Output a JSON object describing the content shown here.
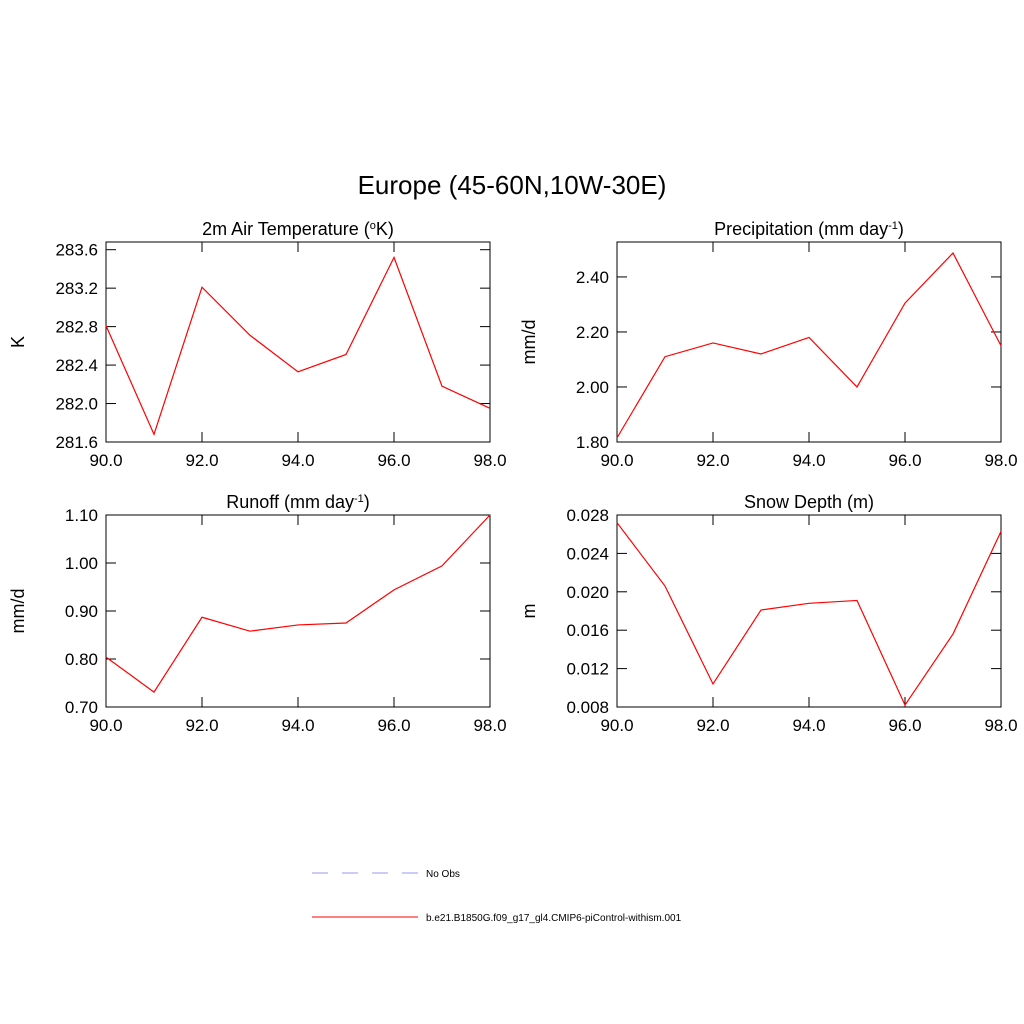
{
  "title": "Europe (45-60N,10W-30E)",
  "legend": [
    {
      "name": "No Obs",
      "color": "#9999ee",
      "dashed": true
    },
    {
      "name": "b.e21.B1850G.f09_g17_gl4.CMIP6-piControl-withism.001",
      "color": "#ff0000",
      "dashed": false
    }
  ],
  "chart_data": [
    {
      "type": "line",
      "title": [
        {
          "text": "2m Air Temperature ("
        },
        {
          "text": "o",
          "sup": true
        },
        {
          "text": "K)"
        }
      ],
      "y_label": "K",
      "color": "#ff0000",
      "x": [
        90,
        91,
        92,
        93,
        94,
        95,
        96,
        97,
        98
      ],
      "values": [
        282.81,
        281.68,
        283.21,
        282.71,
        282.33,
        282.51,
        283.52,
        282.18,
        281.95
      ],
      "xlim": [
        90,
        98
      ],
      "xticks": [
        {
          "value": 90,
          "label": "90.0"
        },
        {
          "value": 92,
          "label": "92.0"
        },
        {
          "value": 94,
          "label": "94.0"
        },
        {
          "value": 96,
          "label": "96.0"
        },
        {
          "value": 98,
          "label": "98.0"
        }
      ],
      "ylim": [
        281.6,
        283.68
      ],
      "yticks": [
        281.6,
        {
          "value": 282,
          "label": "282.0"
        },
        282.4,
        282.8,
        283.2,
        283.6
      ]
    },
    {
      "type": "line",
      "title": [
        {
          "text": "Precipitation (mm day"
        },
        {
          "text": "-1",
          "sup": true
        },
        {
          "text": ")"
        }
      ],
      "y_label": "mm/d",
      "color": "#ff0000",
      "x": [
        90,
        91,
        92,
        93,
        94,
        95,
        96,
        97,
        98
      ],
      "values": [
        1.815,
        2.11,
        2.16,
        2.12,
        2.18,
        2.0,
        2.305,
        2.487,
        2.15
      ],
      "xlim": [
        90,
        98
      ],
      "xticks": [
        {
          "value": 90,
          "label": "90.0"
        },
        {
          "value": 92,
          "label": "92.0"
        },
        {
          "value": 94,
          "label": "94.0"
        },
        {
          "value": 96,
          "label": "96.0"
        },
        {
          "value": 98,
          "label": "98.0"
        }
      ],
      "ylim": [
        1.8,
        2.527
      ],
      "yticks": [
        {
          "value": 1.8,
          "label": "1.80"
        },
        {
          "value": 2,
          "label": "2.00"
        },
        {
          "value": 2.2,
          "label": "2.20"
        },
        {
          "value": 2.4,
          "label": "2.40"
        }
      ]
    },
    {
      "type": "line",
      "title": [
        {
          "text": "Runoff (mm day"
        },
        {
          "text": "-1",
          "sup": true
        },
        {
          "text": ")"
        }
      ],
      "y_label": "mm/d",
      "color": "#ff0000",
      "x": [
        90,
        91,
        92,
        93,
        94,
        95,
        96,
        97,
        98
      ],
      "values": [
        0.804,
        0.731,
        0.887,
        0.858,
        0.871,
        0.875,
        0.944,
        0.994,
        1.1
      ],
      "xlim": [
        90,
        98
      ],
      "xticks": [
        {
          "value": 90,
          "label": "90.0"
        },
        {
          "value": 92,
          "label": "92.0"
        },
        {
          "value": 94,
          "label": "94.0"
        },
        {
          "value": 96,
          "label": "96.0"
        },
        {
          "value": 98,
          "label": "98.0"
        }
      ],
      "ylim": [
        0.7,
        1.1
      ],
      "yticks": [
        {
          "value": 0.7,
          "label": "0.70"
        },
        {
          "value": 0.8,
          "label": "0.80"
        },
        {
          "value": 0.9,
          "label": "0.90"
        },
        {
          "value": 1,
          "label": "1.00"
        },
        {
          "value": 1.1,
          "label": "1.10"
        }
      ]
    },
    {
      "type": "line",
      "title": [
        {
          "text": "Snow Depth (m)"
        }
      ],
      "y_label": "m",
      "color": "#ff0000",
      "x": [
        90,
        91,
        92,
        93,
        94,
        95,
        96,
        97,
        98
      ],
      "values": [
        0.0272,
        0.0206,
        0.0104,
        0.0181,
        0.0188,
        0.0191,
        0.0082,
        0.0156,
        0.0263
      ],
      "xlim": [
        90,
        98
      ],
      "xticks": [
        {
          "value": 90,
          "label": "90.0"
        },
        {
          "value": 92,
          "label": "92.0"
        },
        {
          "value": 94,
          "label": "94.0"
        },
        {
          "value": 96,
          "label": "96.0"
        },
        {
          "value": 98,
          "label": "98.0"
        }
      ],
      "ylim": [
        0.008,
        0.028
      ],
      "yticks": [
        0.008,
        0.012,
        0.016,
        {
          "value": 0.02,
          "label": "0.020"
        },
        0.024,
        0.028
      ]
    }
  ]
}
